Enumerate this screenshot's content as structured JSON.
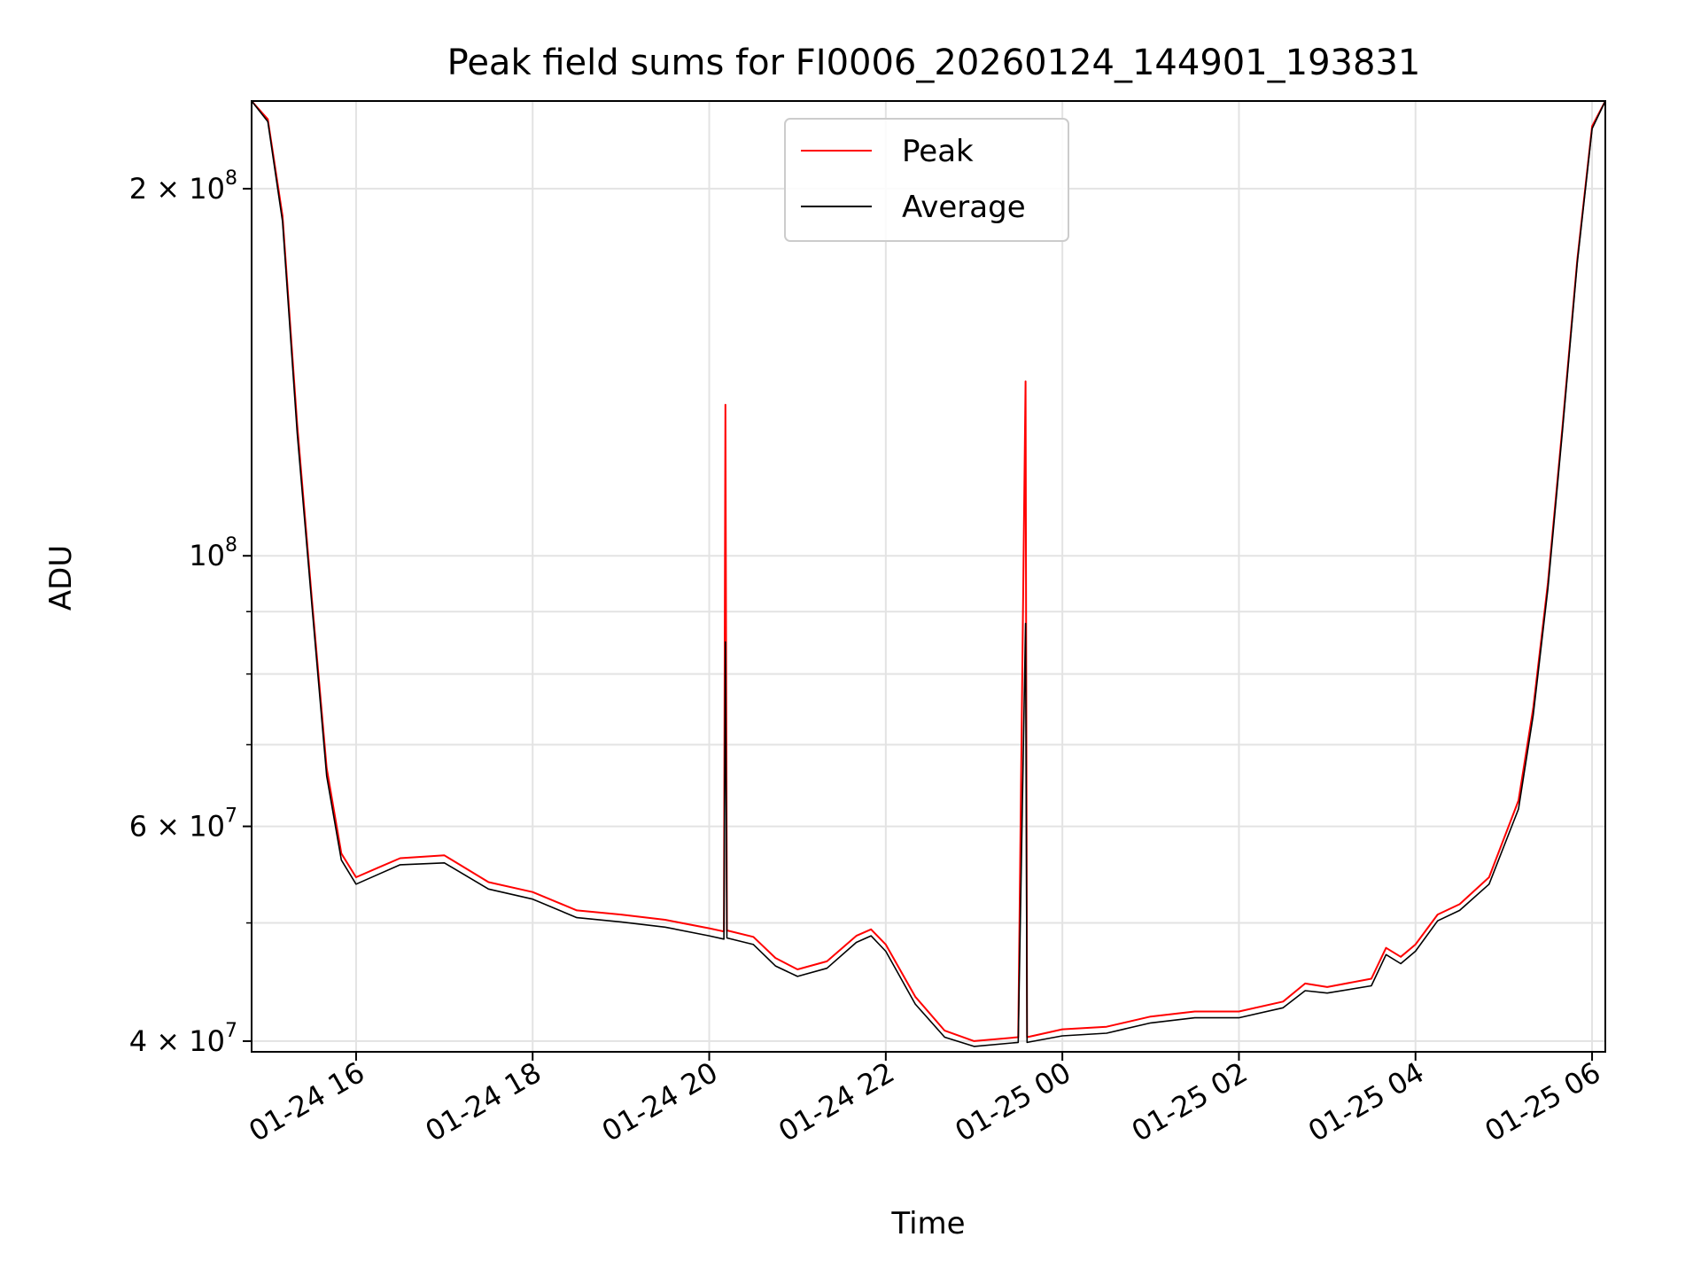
{
  "chart_data": {
    "type": "line",
    "title": "Peak field sums for FI0006_20260124_144901_193831",
    "xlabel": "Time",
    "ylabel": "ADU",
    "yscale": "log",
    "ylim": [
      39200000,
      236000000
    ],
    "xlim": [
      "01-24 14:49",
      "01-25 06:09"
    ],
    "grid": true,
    "legend_position": "top-center",
    "x_ticks": [
      {
        "value": "01-24 16:00",
        "label": "01-24 16"
      },
      {
        "value": "01-24 18:00",
        "label": "01-24 18"
      },
      {
        "value": "01-24 20:00",
        "label": "01-24 20"
      },
      {
        "value": "01-24 22:00",
        "label": "01-24 22"
      },
      {
        "value": "01-25 00:00",
        "label": "01-25 00"
      },
      {
        "value": "01-25 02:00",
        "label": "01-25 02"
      },
      {
        "value": "01-25 04:00",
        "label": "01-25 04"
      },
      {
        "value": "01-25 06:00",
        "label": "01-25 06"
      }
    ],
    "y_ticks": [
      {
        "value": 40000000,
        "mantissa": "4",
        "label": "4 × 10^7"
      },
      {
        "value": 60000000,
        "mantissa": "6",
        "label": "6 × 10^7"
      },
      {
        "value": 100000000,
        "mantissa": "",
        "label": "10^8"
      },
      {
        "value": 200000000,
        "mantissa": "2",
        "label": "2 × 10^8"
      }
    ],
    "series": [
      {
        "name": "Peak",
        "color": "#ff0000",
        "points": [
          [
            "01-24 14:49",
            236000000
          ],
          [
            "01-24 15:00",
            228000000
          ],
          [
            "01-24 15:10",
            190000000
          ],
          [
            "01-24 15:20",
            128000000
          ],
          [
            "01-24 15:30",
            92000000
          ],
          [
            "01-24 15:40",
            67000000
          ],
          [
            "01-24 15:50",
            57000000
          ],
          [
            "01-24 16:00",
            54500000
          ],
          [
            "01-24 16:15",
            55500000
          ],
          [
            "01-24 16:30",
            56500000
          ],
          [
            "01-24 17:00",
            56800000
          ],
          [
            "01-24 17:30",
            54000000
          ],
          [
            "01-24 18:00",
            53000000
          ],
          [
            "01-24 18:30",
            51200000
          ],
          [
            "01-24 19:00",
            50800000
          ],
          [
            "01-24 19:30",
            50300000
          ],
          [
            "01-24 20:00",
            49500000
          ],
          [
            "01-24 20:10",
            49200000
          ],
          [
            "01-24 20:11",
            133000000
          ],
          [
            "01-24 20:12",
            49300000
          ],
          [
            "01-24 20:30",
            48700000
          ],
          [
            "01-24 20:45",
            46800000
          ],
          [
            "01-24 21:00",
            45800000
          ],
          [
            "01-24 21:20",
            46500000
          ],
          [
            "01-24 21:40",
            48800000
          ],
          [
            "01-24 21:50",
            49400000
          ],
          [
            "01-24 22:00",
            48000000
          ],
          [
            "01-24 22:20",
            43500000
          ],
          [
            "01-24 22:40",
            40800000
          ],
          [
            "01-24 23:00",
            40000000
          ],
          [
            "01-24 23:30",
            40300000
          ],
          [
            "01-24 23:35",
            139000000
          ],
          [
            "01-24 23:36",
            40300000
          ],
          [
            "01-25 00:00",
            40900000
          ],
          [
            "01-25 00:30",
            41100000
          ],
          [
            "01-25 01:00",
            41900000
          ],
          [
            "01-25 01:30",
            42300000
          ],
          [
            "01-25 02:00",
            42300000
          ],
          [
            "01-25 02:30",
            43100000
          ],
          [
            "01-25 02:45",
            44600000
          ],
          [
            "01-25 03:00",
            44300000
          ],
          [
            "01-25 03:30",
            45000000
          ],
          [
            "01-25 03:40",
            47700000
          ],
          [
            "01-25 03:50",
            46900000
          ],
          [
            "01-25 04:00",
            48000000
          ],
          [
            "01-25 04:15",
            50800000
          ],
          [
            "01-25 04:30",
            51800000
          ],
          [
            "01-25 04:50",
            54500000
          ],
          [
            "01-25 05:10",
            63000000
          ],
          [
            "01-25 05:20",
            75000000
          ],
          [
            "01-25 05:30",
            95000000
          ],
          [
            "01-25 05:40",
            128000000
          ],
          [
            "01-25 05:50",
            175000000
          ],
          [
            "01-25 06:00",
            225000000
          ],
          [
            "01-25 06:09",
            236000000
          ]
        ]
      },
      {
        "name": "Average",
        "color": "#000000",
        "points": [
          [
            "01-24 14:49",
            236000000
          ],
          [
            "01-24 15:00",
            227000000
          ],
          [
            "01-24 15:10",
            188000000
          ],
          [
            "01-24 15:20",
            126000000
          ],
          [
            "01-24 15:30",
            91000000
          ],
          [
            "01-24 15:40",
            66000000
          ],
          [
            "01-24 15:50",
            56300000
          ],
          [
            "01-24 16:00",
            53800000
          ],
          [
            "01-24 16:15",
            54800000
          ],
          [
            "01-24 16:30",
            55800000
          ],
          [
            "01-24 17:00",
            56000000
          ],
          [
            "01-24 17:30",
            53300000
          ],
          [
            "01-24 18:00",
            52300000
          ],
          [
            "01-24 18:30",
            50500000
          ],
          [
            "01-24 19:00",
            50100000
          ],
          [
            "01-24 19:30",
            49600000
          ],
          [
            "01-24 20:00",
            48800000
          ],
          [
            "01-24 20:10",
            48500000
          ],
          [
            "01-24 20:11",
            85000000
          ],
          [
            "01-24 20:12",
            48600000
          ],
          [
            "01-24 20:30",
            48000000
          ],
          [
            "01-24 20:45",
            46100000
          ],
          [
            "01-24 21:00",
            45200000
          ],
          [
            "01-24 21:20",
            45900000
          ],
          [
            "01-24 21:40",
            48200000
          ],
          [
            "01-24 21:50",
            48800000
          ],
          [
            "01-24 22:00",
            47400000
          ],
          [
            "01-24 22:20",
            42900000
          ],
          [
            "01-24 22:40",
            40300000
          ],
          [
            "01-24 23:00",
            39600000
          ],
          [
            "01-24 23:30",
            39900000
          ],
          [
            "01-24 23:35",
            88000000
          ],
          [
            "01-24 23:36",
            39900000
          ],
          [
            "01-25 00:00",
            40400000
          ],
          [
            "01-25 00:30",
            40600000
          ],
          [
            "01-25 01:00",
            41400000
          ],
          [
            "01-25 01:30",
            41800000
          ],
          [
            "01-25 02:00",
            41800000
          ],
          [
            "01-25 02:30",
            42600000
          ],
          [
            "01-25 02:45",
            44000000
          ],
          [
            "01-25 03:00",
            43800000
          ],
          [
            "01-25 03:30",
            44400000
          ],
          [
            "01-25 03:40",
            47100000
          ],
          [
            "01-25 03:50",
            46300000
          ],
          [
            "01-25 04:00",
            47400000
          ],
          [
            "01-25 04:15",
            50200000
          ],
          [
            "01-25 04:30",
            51200000
          ],
          [
            "01-25 04:50",
            53800000
          ],
          [
            "01-25 05:10",
            62000000
          ],
          [
            "01-25 05:20",
            74000000
          ],
          [
            "01-25 05:30",
            94000000
          ],
          [
            "01-25 05:40",
            127000000
          ],
          [
            "01-25 05:50",
            174000000
          ],
          [
            "01-25 06:00",
            224000000
          ],
          [
            "01-25 06:09",
            236000000
          ]
        ]
      }
    ]
  }
}
